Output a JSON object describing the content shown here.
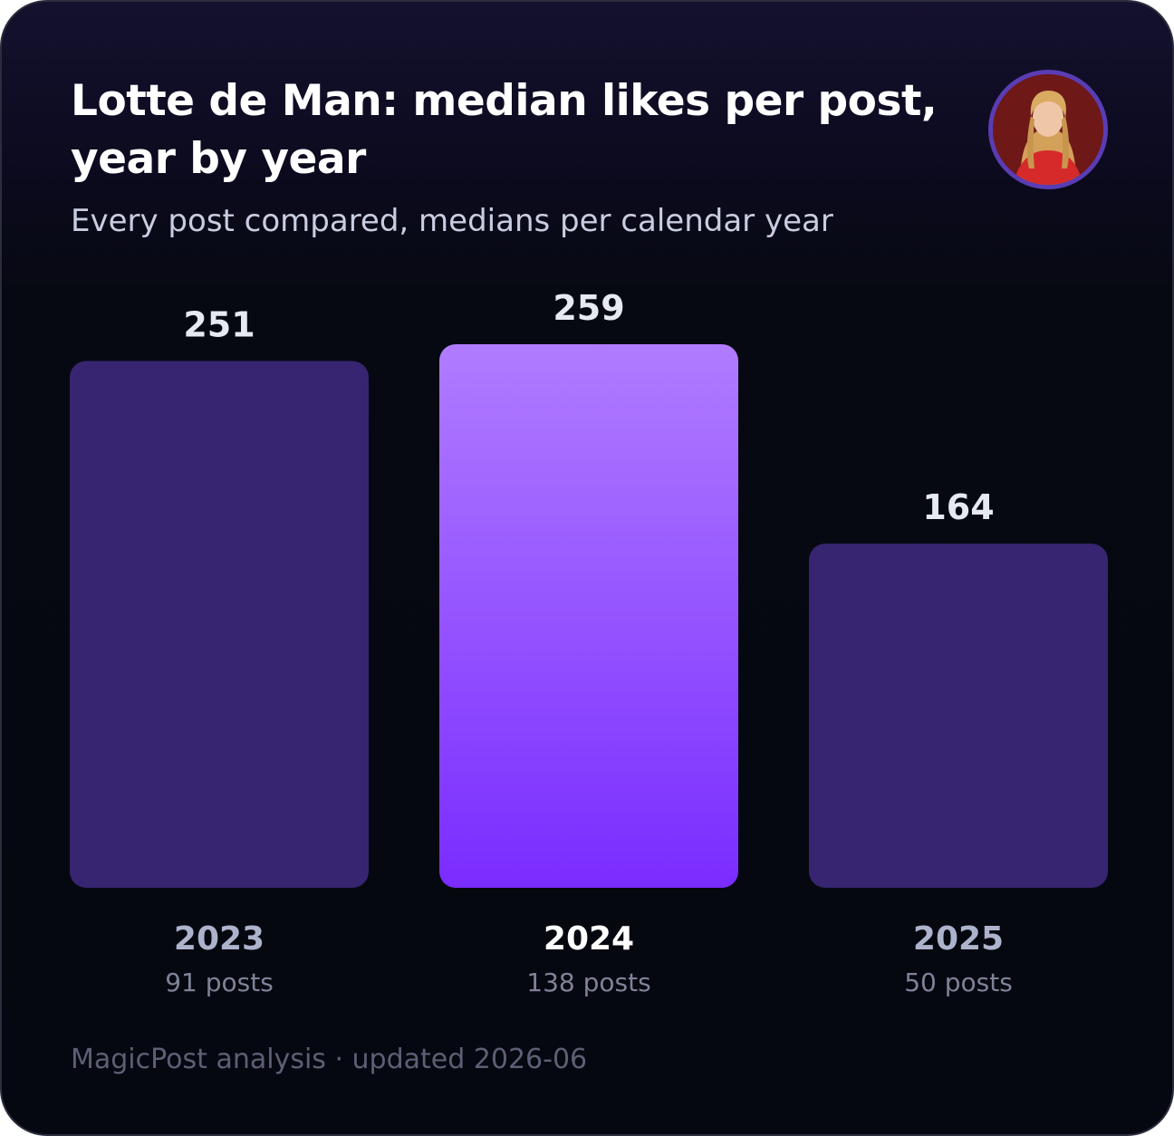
{
  "header": {
    "title": "Lotte de Man: median likes per post, year by year",
    "subtitle": "Every post compared, medians per calendar year"
  },
  "footer": {
    "text": "MagicPost analysis · updated 2026-06"
  },
  "avatar": {
    "icon": "profile-photo-icon"
  },
  "colors": {
    "bar": "#372571",
    "highlight_top": "#b07cff",
    "highlight_bottom": "#7a2cff",
    "value_label": "#e6e8f2",
    "year_label": "#aeb3cc",
    "year_label_highlight": "#ffffff",
    "count_label": "#7e8398"
  },
  "chart_data": {
    "type": "bar",
    "title": "Lotte de Man: median likes per post, year by year",
    "subtitle": "Every post compared, medians per calendar year",
    "categories": [
      "2023",
      "2024",
      "2025"
    ],
    "values": [
      251,
      259,
      164
    ],
    "value_labels": [
      "251",
      "259",
      "164"
    ],
    "post_counts": [
      "91 posts",
      "138 posts",
      "50 posts"
    ],
    "highlight_index": 1,
    "ylim": [
      0,
      259
    ],
    "grid": false,
    "legend": "none"
  }
}
